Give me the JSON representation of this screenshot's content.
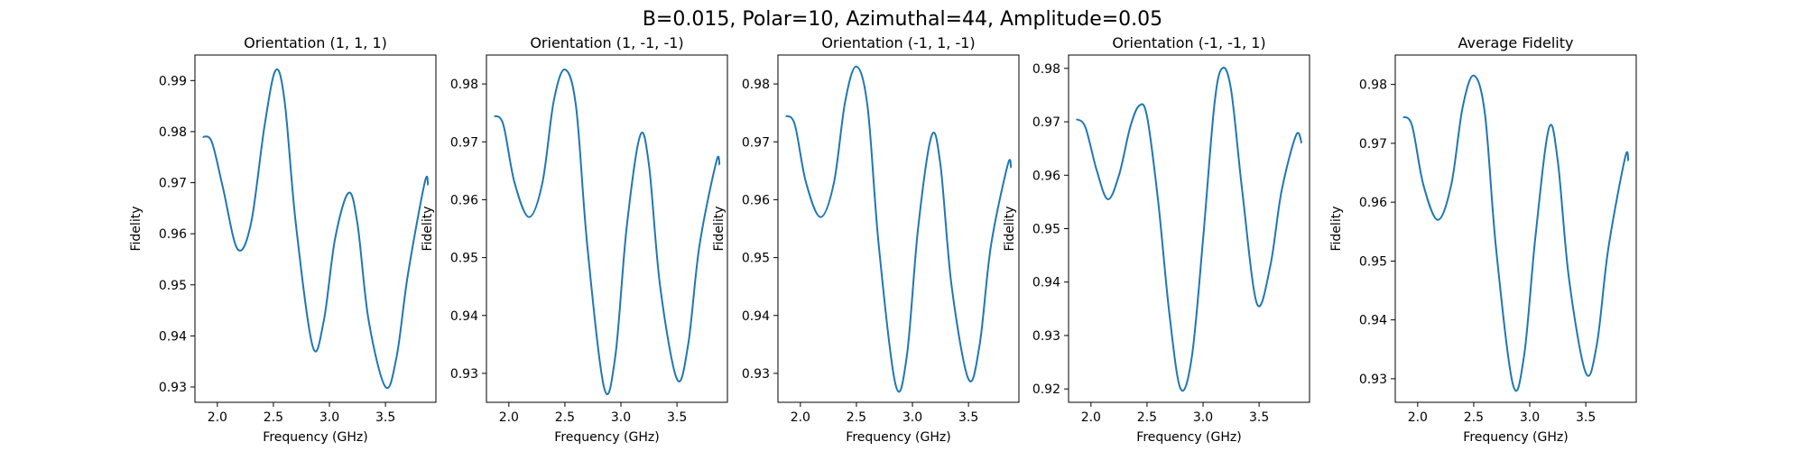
{
  "figure": {
    "suptitle": "B=0.015, Polar=10, Azimuthal=44, Amplitude=0.05",
    "line_color": "#1f77b4"
  },
  "chart_data": [
    {
      "type": "line",
      "title": "Orientation (1, 1, 1)",
      "xlabel": "Frequency (GHz)",
      "ylabel": "Fidelity",
      "xlim": [
        1.8,
        3.95
      ],
      "ylim": [
        0.927,
        0.995
      ],
      "xticks": [
        "2.0",
        "2.5",
        "3.0",
        "3.5"
      ],
      "yticks": [
        "0.93",
        "0.94",
        "0.95",
        "0.96",
        "0.97",
        "0.98",
        "0.99"
      ],
      "series": [
        {
          "x": [
            1.87,
            1.95,
            2.05,
            2.18,
            2.3,
            2.42,
            2.52,
            2.6,
            2.7,
            2.85,
            2.95,
            3.05,
            3.17,
            3.25,
            3.35,
            3.5,
            3.6,
            3.7,
            3.85,
            3.88
          ],
          "y": [
            0.979,
            0.978,
            0.969,
            0.957,
            0.962,
            0.981,
            0.992,
            0.986,
            0.962,
            0.938,
            0.943,
            0.959,
            0.968,
            0.962,
            0.943,
            0.93,
            0.936,
            0.952,
            0.97,
            0.9695
          ]
        }
      ]
    },
    {
      "type": "line",
      "title": "Orientation (1, -1, -1)",
      "xlabel": "Frequency (GHz)",
      "ylabel": "Fidelity",
      "xlim": [
        1.8,
        3.95
      ],
      "ylim": [
        0.925,
        0.985
      ],
      "xticks": [
        "2.0",
        "2.5",
        "3.0",
        "3.5"
      ],
      "yticks": [
        "0.93",
        "0.94",
        "0.95",
        "0.96",
        "0.97",
        "0.98"
      ],
      "series": [
        {
          "x": [
            1.87,
            1.95,
            2.05,
            2.18,
            2.3,
            2.4,
            2.5,
            2.6,
            2.7,
            2.85,
            2.95,
            3.05,
            3.17,
            3.25,
            3.35,
            3.5,
            3.6,
            3.7,
            3.85,
            3.88
          ],
          "y": [
            0.9745,
            0.973,
            0.963,
            0.957,
            0.963,
            0.977,
            0.9825,
            0.976,
            0.952,
            0.9275,
            0.933,
            0.955,
            0.971,
            0.966,
            0.945,
            0.929,
            0.935,
            0.952,
            0.9665,
            0.966
          ]
        }
      ]
    },
    {
      "type": "line",
      "title": "Orientation (-1, 1, -1)",
      "xlabel": "Frequency (GHz)",
      "ylabel": "Fidelity",
      "xlim": [
        1.8,
        3.95
      ],
      "ylim": [
        0.925,
        0.985
      ],
      "xticks": [
        "2.0",
        "2.5",
        "3.0",
        "3.5"
      ],
      "yticks": [
        "0.93",
        "0.94",
        "0.95",
        "0.96",
        "0.97",
        "0.98"
      ],
      "series": [
        {
          "x": [
            1.87,
            1.95,
            2.05,
            2.18,
            2.3,
            2.4,
            2.5,
            2.6,
            2.7,
            2.85,
            2.95,
            3.05,
            3.17,
            3.25,
            3.35,
            3.5,
            3.6,
            3.7,
            3.85,
            3.88
          ],
          "y": [
            0.9745,
            0.973,
            0.963,
            0.957,
            0.963,
            0.977,
            0.983,
            0.976,
            0.952,
            0.928,
            0.933,
            0.955,
            0.971,
            0.966,
            0.945,
            0.929,
            0.935,
            0.952,
            0.966,
            0.9655
          ]
        }
      ]
    },
    {
      "type": "line",
      "title": "Orientation (-1, -1, 1)",
      "xlabel": "Frequency (GHz)",
      "ylabel": "Fidelity",
      "xlim": [
        1.8,
        3.95
      ],
      "ylim": [
        0.9175,
        0.9825
      ],
      "xticks": [
        "2.0",
        "2.5",
        "3.0",
        "3.5"
      ],
      "yticks": [
        "0.92",
        "0.93",
        "0.94",
        "0.95",
        "0.96",
        "0.97",
        "0.98"
      ],
      "series": [
        {
          "x": [
            1.87,
            1.95,
            2.05,
            2.15,
            2.25,
            2.35,
            2.43,
            2.5,
            2.6,
            2.7,
            2.8,
            2.9,
            3.0,
            3.1,
            3.17,
            3.25,
            3.35,
            3.48,
            3.6,
            3.7,
            3.83,
            3.88
          ],
          "y": [
            0.9705,
            0.969,
            0.961,
            0.9555,
            0.96,
            0.969,
            0.973,
            0.971,
            0.955,
            0.934,
            0.92,
            0.926,
            0.948,
            0.973,
            0.98,
            0.976,
            0.957,
            0.936,
            0.943,
            0.957,
            0.9675,
            0.966
          ]
        }
      ]
    },
    {
      "type": "line",
      "title": "Average Fidelity",
      "xlabel": "Frequency (GHz)",
      "ylabel": "Fidelity",
      "xlim": [
        1.8,
        3.95
      ],
      "ylim": [
        0.926,
        0.985
      ],
      "xticks": [
        "2.0",
        "2.5",
        "3.0",
        "3.5"
      ],
      "yticks": [
        "0.93",
        "0.94",
        "0.95",
        "0.96",
        "0.97",
        "0.98"
      ],
      "series": [
        {
          "x": [
            1.87,
            1.95,
            2.05,
            2.18,
            2.3,
            2.4,
            2.5,
            2.6,
            2.7,
            2.85,
            2.95,
            3.05,
            3.17,
            3.25,
            3.35,
            3.5,
            3.6,
            3.7,
            3.85,
            3.88
          ],
          "y": [
            0.9745,
            0.973,
            0.963,
            0.957,
            0.963,
            0.976,
            0.9815,
            0.975,
            0.952,
            0.929,
            0.934,
            0.954,
            0.9725,
            0.967,
            0.947,
            0.931,
            0.936,
            0.952,
            0.9675,
            0.967
          ]
        }
      ]
    }
  ]
}
